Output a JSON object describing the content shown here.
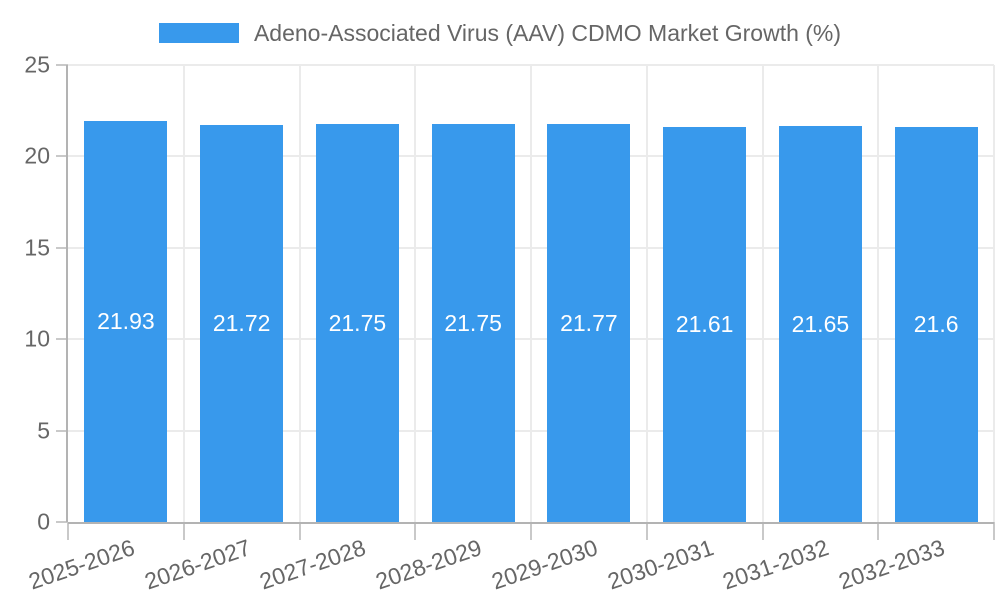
{
  "chart_data": {
    "type": "bar",
    "title": "Adeno-Associated Virus (AAV) CDMO Market Growth (%)",
    "categories": [
      "2025-2026",
      "2026-2027",
      "2027-2028",
      "2028-2029",
      "2029-2030",
      "2030-2031",
      "2031-2032",
      "2032-2033"
    ],
    "values": [
      21.93,
      21.72,
      21.75,
      21.75,
      21.77,
      21.61,
      21.65,
      21.6
    ],
    "value_labels": [
      "21.93",
      "21.72",
      "21.75",
      "21.75",
      "21.77",
      "21.61",
      "21.65",
      "21.6"
    ],
    "xlabel": "",
    "ylabel": "",
    "ylim": [
      0,
      25
    ],
    "yticks": [
      0,
      5,
      10,
      15,
      20,
      25
    ],
    "grid": true,
    "legend_position": "top",
    "colors": {
      "bar": "#3899ec",
      "grid": "#ebebeb",
      "axis": "#b3b3b3",
      "tick_mark": "#c9c9c9",
      "tick_text": "#666666",
      "legend_text": "#666666",
      "value_text": "#ffffff",
      "background": "#ffffff"
    }
  }
}
